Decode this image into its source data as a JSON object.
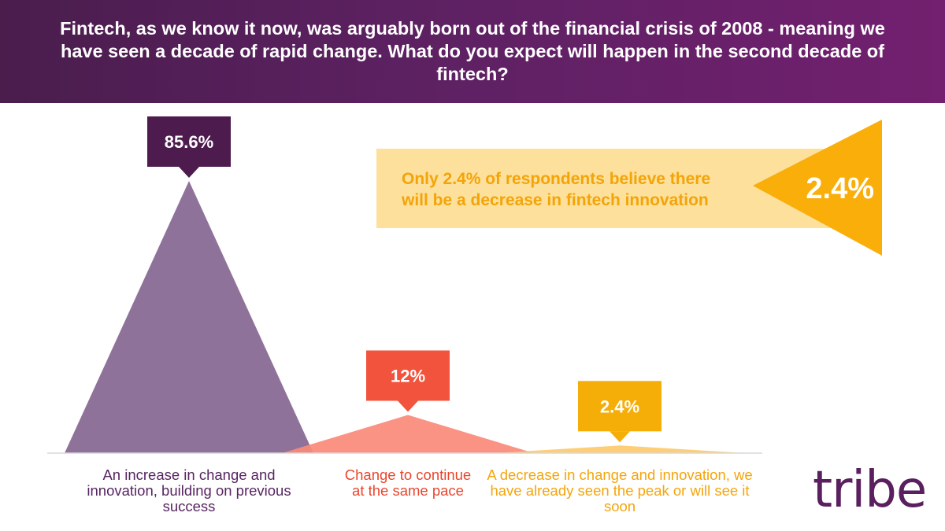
{
  "header": {
    "title": "Fintech, as we know it now, was arguably born out of the financial crisis of 2008 - meaning we have seen a decade of rapid change. What do you expect will happen in the second decade of fintech?"
  },
  "chart_data": {
    "type": "bar",
    "style": "triangle-peaks",
    "categories": [
      "An increase in change and innovation, building on previous success",
      "Change to continue at the same pace",
      "A decrease in change and innovation, we have already seen the peak or will see it soon"
    ],
    "values": [
      85.6,
      12,
      2.4
    ],
    "data_labels": [
      "85.6%",
      "12%",
      "2.4%"
    ],
    "unit": "%",
    "ylim": [
      0,
      85.6
    ],
    "grid": false,
    "legend": "none",
    "colors": {
      "series": [
        "#856691",
        "#fb8a79",
        "#fdc55f"
      ],
      "label_boxes": [
        "#4e1b4f",
        "#f1533c",
        "#f5ae08"
      ],
      "category_text": [
        "#572562",
        "#e9462e",
        "#f4a50c"
      ]
    }
  },
  "callout": {
    "text": "Only 2.4% of respondents believe there will be a decrease in fintech innovation",
    "value": "2.4%",
    "box_color": "#fde09c",
    "text_color": "#f3a408",
    "triangle_color": "#f9ae0a"
  },
  "logo": {
    "text": "tribe",
    "color": "#5a1f5e"
  }
}
